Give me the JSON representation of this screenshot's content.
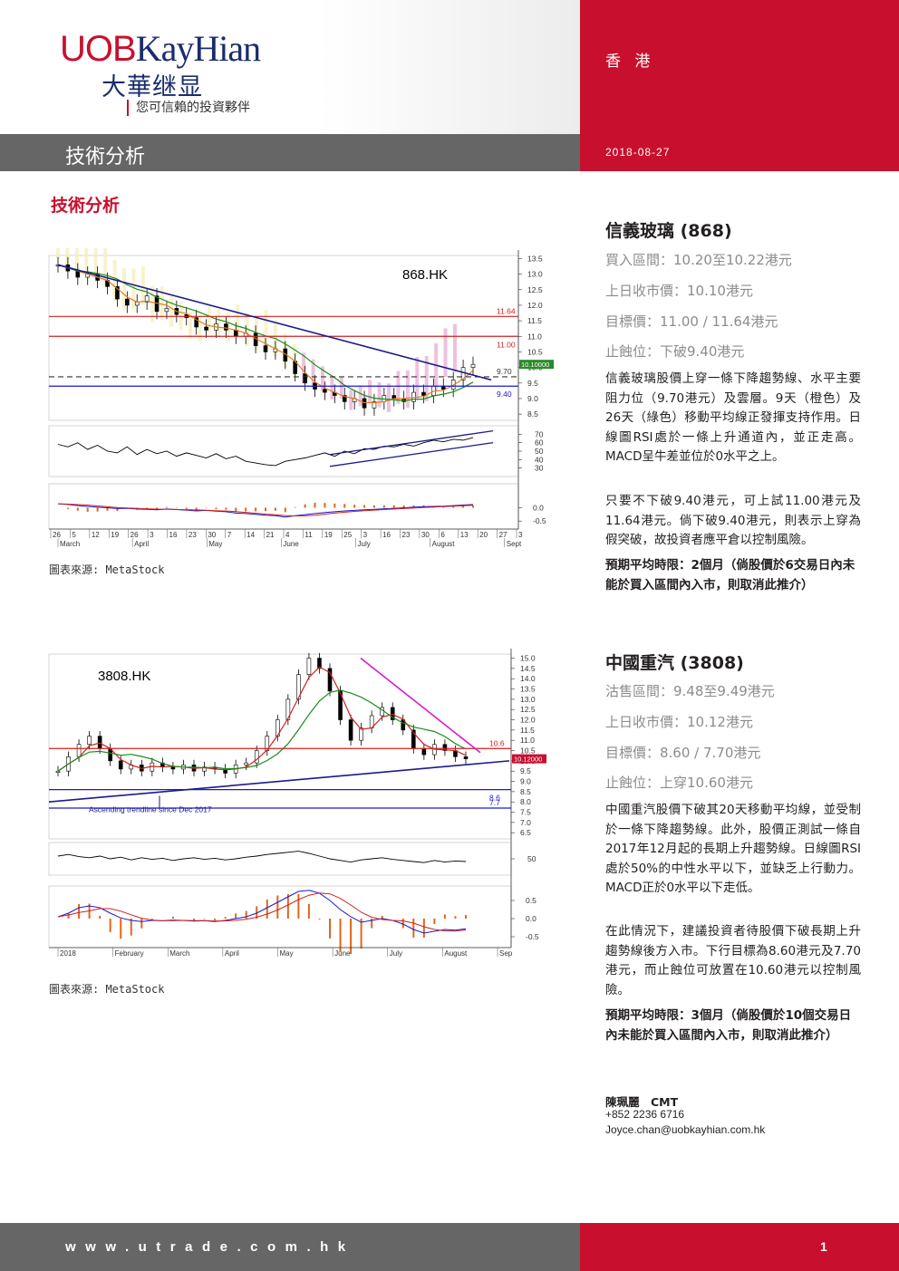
{
  "header": {
    "logo_uob": "UOB",
    "logo_kh": "KayHian",
    "logo_cn": "大華继显",
    "tagline": "您可信賴的投資夥伴",
    "region": "香 港",
    "section_title": "技術分析",
    "date": "2018-08-27"
  },
  "page_heading": "技術分析",
  "stocks": [
    {
      "name": "信義玻璃 (868)",
      "buy_range": "買入區間：10.20至10.22港元",
      "last_close": "上日收市價：10.10港元",
      "target": "目標價：11.00 / 11.64港元",
      "stop_loss": "止蝕位：下破9.40港元",
      "para1": "信義玻璃股價上穿一條下降趨勢線、水平主要阻力位（9.70港元）及雲層。9天（橙色）及26天（綠色）移動平均線正發揮支持作用。日線圖RSI處於一條上升通道內，並正走高。MACD呈牛差並位於0水平之上。",
      "para2": "只要不下破9.40港元，可上試11.00港元及11.64港元。倘下破9.40港元，則表示上穿為假突破，故投資者應平倉以控制風險。",
      "horizon": "預期平均時限：2個月（倘股價於6交易日內未能於買入區間內入市，則取消此推介）"
    },
    {
      "name": "中國重汽 (3808)",
      "sell_range": "沽售區間：9.48至9.49港元",
      "last_close": "上日收市價：10.12港元",
      "target": "目標價：8.60 / 7.70港元",
      "stop_loss": "止蝕位：上穿10.60港元",
      "para1": "中國重汽股價下破其20天移動平均線，並受制於一條下降趨勢線。此外，股價正測試一條自2017年12月起的長期上升趨勢線。日線圖RSI處於50%的中性水平以下，並缺乏上行動力。MACD正於0水平以下走低。",
      "para2": "在此情況下，建議投資者待股價下破長期上升趨勢線後方入市。下行目標為8.60港元及7.70港元，而止蝕位可放置在10.60港元以控制風險。",
      "horizon": "預期平均時限：3個月（倘股價於10個交易日內未能於買入區間內入市，則取消此推介）"
    }
  ],
  "chart_source": "圖表來源: MetaStock",
  "analyst": {
    "name": "陳珮麗　CMT",
    "phone": "+852 2236 6716",
    "email": "Joyce.chan@uobkayhian.com.hk"
  },
  "footer": {
    "website": "www.utrade.com.hk",
    "page_number": "1"
  },
  "chart_data": [
    {
      "type": "line",
      "title": "868.HK",
      "y_ticks": [
        "13.5",
        "13.0",
        "12.5",
        "12.0",
        "11.5",
        "11.0",
        "10.5",
        "10.0",
        "9.5",
        "9.0",
        "8.5"
      ],
      "ylim": [
        8.3,
        13.6
      ],
      "levels": [
        {
          "label": "11.64",
          "value": 11.64
        },
        {
          "label": "11.00",
          "value": 11.0
        },
        {
          "label": "9.70",
          "value": 9.7
        },
        {
          "label": "9.40",
          "value": 9.4
        }
      ],
      "last_price_label": "10.10000",
      "x_ticks": [
        "26",
        "5",
        "12",
        "19",
        "26",
        "3",
        "16",
        "23",
        "30",
        "7",
        "14",
        "21",
        "4",
        "11",
        "19",
        "25",
        "3",
        "16",
        "23",
        "30",
        "6",
        "13",
        "20",
        "27",
        "3"
      ],
      "months": [
        "March",
        "April",
        "May",
        "June",
        "July",
        "August",
        "Sept"
      ],
      "close": [
        13.3,
        13.1,
        12.9,
        13.0,
        12.8,
        12.6,
        12.2,
        12.0,
        12.1,
        12.3,
        11.8,
        11.9,
        11.7,
        11.6,
        11.3,
        11.2,
        11.4,
        11.2,
        11.0,
        11.1,
        10.7,
        10.5,
        10.6,
        10.2,
        9.8,
        9.5,
        9.3,
        9.2,
        9.1,
        8.9,
        9.0,
        8.7,
        8.9,
        9.1,
        9.0,
        8.9,
        9.2,
        9.1,
        9.4,
        9.3,
        9.6,
        10.0,
        10.1
      ],
      "rsi_ticks": [
        "70",
        "60",
        "50",
        "40",
        "30"
      ],
      "rsi": [
        58,
        55,
        60,
        52,
        57,
        50,
        48,
        55,
        46,
        52,
        47,
        50,
        44,
        48,
        45,
        42,
        47,
        41,
        44,
        38,
        36,
        34,
        33,
        38,
        40,
        42,
        45,
        48,
        44,
        50,
        47,
        53,
        52,
        56,
        55,
        58,
        56,
        60,
        63,
        61,
        64,
        63,
        66
      ],
      "macd_ticks": [
        "0.0",
        "-0.5"
      ],
      "macd": [
        0.15,
        0.12,
        0.08,
        0.05,
        0.02,
        0.0,
        -0.03,
        -0.02,
        -0.05,
        -0.06,
        -0.08,
        -0.05,
        -0.07,
        -0.09,
        -0.12,
        -0.1,
        -0.13,
        -0.15,
        -0.2,
        -0.22,
        -0.25,
        -0.28,
        -0.3,
        -0.35,
        -0.3,
        -0.26,
        -0.22,
        -0.18,
        -0.15,
        -0.12,
        -0.1,
        -0.08,
        -0.06,
        -0.04,
        -0.02,
        0.0,
        0.02,
        0.04,
        0.05,
        0.06,
        0.08,
        0.1,
        0.12
      ]
    },
    {
      "type": "line",
      "title": "3808.HK",
      "y_ticks": [
        "15.0",
        "14.5",
        "14.0",
        "13.5",
        "13.0",
        "12.5",
        "12.0",
        "11.5",
        "11.0",
        "10.5",
        "10.0",
        "9.5",
        "9.0",
        "8.5",
        "8.0",
        "7.5",
        "7.0",
        "6.5"
      ],
      "ylim": [
        6.2,
        15.2
      ],
      "levels": [
        {
          "label": "10.6",
          "value": 10.6
        },
        {
          "label": "8.6",
          "value": 8.6
        },
        {
          "label": "7.7",
          "value": 7.7
        }
      ],
      "last_price_label": "10.12000",
      "annotation": "Ascending trendline since Dec 2017",
      "months": [
        "2018",
        "February",
        "March",
        "April",
        "May",
        "June",
        "July",
        "August",
        "Sep"
      ],
      "close": [
        9.5,
        10.2,
        10.8,
        11.2,
        10.6,
        10.0,
        9.6,
        9.8,
        9.5,
        9.9,
        9.7,
        9.6,
        9.8,
        9.5,
        9.7,
        9.6,
        9.4,
        9.8,
        9.9,
        10.5,
        11.2,
        12.0,
        13.0,
        14.2,
        15.0,
        14.5,
        13.4,
        12.0,
        11.0,
        11.6,
        12.2,
        12.6,
        12.0,
        11.5,
        10.6,
        10.3,
        10.8,
        10.5,
        10.2,
        10.1
      ],
      "rsi_ticks": [
        "50"
      ],
      "rsi": [
        55,
        58,
        54,
        52,
        55,
        50,
        53,
        48,
        52,
        49,
        51,
        47,
        50,
        52,
        49,
        51,
        48,
        50,
        53,
        55,
        58,
        60,
        62,
        64,
        60,
        55,
        50,
        47,
        44,
        48,
        50,
        52,
        49,
        47,
        45,
        43,
        47,
        44,
        46,
        45
      ],
      "macd_ticks": [
        "0.5",
        "0.0",
        "-0.5"
      ],
      "macd": [
        0.05,
        0.15,
        0.3,
        0.35,
        0.3,
        0.15,
        0.02,
        -0.05,
        -0.08,
        -0.05,
        -0.06,
        -0.04,
        -0.05,
        -0.07,
        -0.06,
        -0.08,
        -0.05,
        0.0,
        0.05,
        0.15,
        0.3,
        0.45,
        0.6,
        0.75,
        0.78,
        0.7,
        0.5,
        0.25,
        0.05,
        -0.1,
        -0.05,
        0.0,
        -0.05,
        -0.15,
        -0.3,
        -0.4,
        -0.35,
        -0.3,
        -0.32,
        -0.28
      ]
    }
  ]
}
